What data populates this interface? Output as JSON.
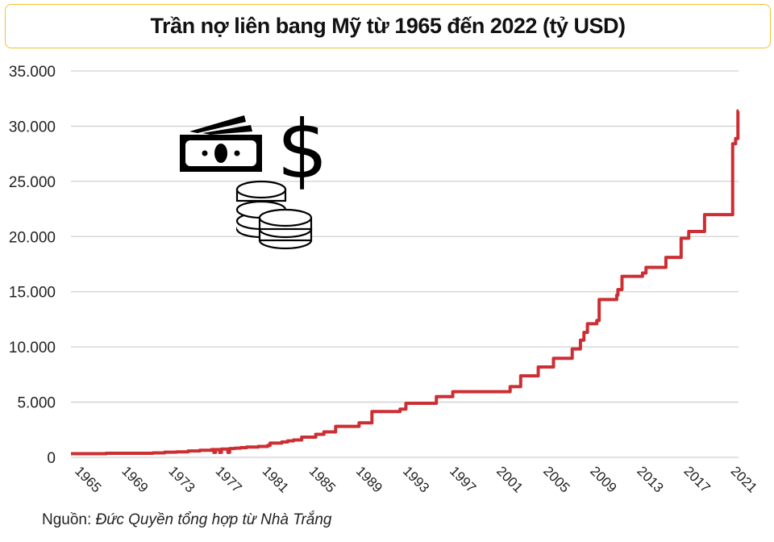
{
  "title": "Trần nợ liên bang Mỹ từ 1965 đến 2022 (tỷ USD)",
  "source": {
    "label": "Nguồn:",
    "text": "Đức Quyền tổng hợp từ Nhà Trắng"
  },
  "icons": [
    "money-bill-icon",
    "dollar-sign-icon",
    "coin-stacks-icon"
  ],
  "chart_data": {
    "type": "line",
    "title": "Trần nợ liên bang Mỹ từ 1965 đến 2022 (tỷ USD)",
    "xlabel": "",
    "ylabel": "",
    "ylim": [
      0,
      35000
    ],
    "xlim": [
      1965,
      2022
    ],
    "grid": true,
    "y_ticks": [
      "0",
      "5.000",
      "10.000",
      "15.000",
      "20.000",
      "25.000",
      "30.000",
      "35.000"
    ],
    "y_tick_values": [
      0,
      5000,
      10000,
      15000,
      20000,
      25000,
      30000,
      35000
    ],
    "x_ticks": [
      "1965",
      "1969",
      "1973",
      "1977",
      "1981",
      "1985",
      "1989",
      "1993",
      "1997",
      "2001",
      "2005",
      "2009",
      "2013",
      "2017",
      "2021"
    ],
    "x_tick_values": [
      1965,
      1969,
      1973,
      1977,
      1981,
      1985,
      1989,
      1993,
      1997,
      2001,
      2005,
      2009,
      2013,
      2017,
      2021
    ],
    "line_color": "#cc2f33",
    "series": [
      {
        "name": "Trần nợ",
        "step": true,
        "points": [
          [
            1965,
            328
          ],
          [
            1968,
            365
          ],
          [
            1972,
            400
          ],
          [
            1973,
            465
          ],
          [
            1974,
            495
          ],
          [
            1975,
            577
          ],
          [
            1976,
            636
          ],
          [
            1977,
            700
          ],
          [
            1977.2,
            450
          ],
          [
            1977.35,
            700
          ],
          [
            1977.7,
            450
          ],
          [
            1977.85,
            752
          ],
          [
            1978.4,
            450
          ],
          [
            1978.55,
            798
          ],
          [
            1979,
            830
          ],
          [
            1979.5,
            879
          ],
          [
            1980,
            935
          ],
          [
            1981,
            985
          ],
          [
            1981.8,
            1080
          ],
          [
            1982,
            1290
          ],
          [
            1983,
            1389
          ],
          [
            1983.5,
            1490
          ],
          [
            1984,
            1573
          ],
          [
            1984.7,
            1824
          ],
          [
            1985.9,
            2079
          ],
          [
            1986.6,
            2300
          ],
          [
            1987.6,
            2800
          ],
          [
            1989.6,
            3123
          ],
          [
            1990.7,
            4145
          ],
          [
            1993.1,
            4370
          ],
          [
            1993.6,
            4900
          ],
          [
            1996.2,
            5500
          ],
          [
            1997.6,
            5950
          ],
          [
            2002.5,
            6400
          ],
          [
            2003.4,
            7384
          ],
          [
            2004.9,
            8184
          ],
          [
            2006.2,
            8965
          ],
          [
            2007.8,
            9815
          ],
          [
            2008.5,
            10615
          ],
          [
            2008.8,
            11315
          ],
          [
            2009.1,
            12104
          ],
          [
            2009.9,
            12394
          ],
          [
            2010.1,
            14294
          ],
          [
            2011.6,
            14694
          ],
          [
            2011.7,
            15194
          ],
          [
            2012.05,
            16394
          ],
          [
            2013.8,
            16699
          ],
          [
            2014.1,
            17212
          ],
          [
            2015.8,
            18113
          ],
          [
            2017.1,
            19846
          ],
          [
            2017.75,
            20456
          ],
          [
            2019.1,
            21988
          ],
          [
            2021.5,
            28401
          ],
          [
            2021.75,
            28881
          ],
          [
            2021.95,
            31381
          ]
        ]
      }
    ]
  }
}
